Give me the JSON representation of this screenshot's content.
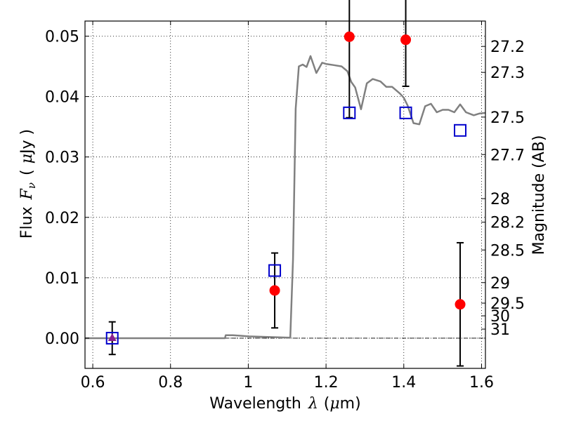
{
  "chart_data": {
    "type": "scatter",
    "xlabel_prefix": "Wavelength",
    "xlabel_symbol": "λ",
    "xlabel_unit_open": "(",
    "xlabel_unit_mu": "μ",
    "xlabel_unit_rest": "m)",
    "ylabel_prefix": "Flux",
    "ylabel_symbol": "F",
    "ylabel_subscript": "ν",
    "ylabel_unit_open": "(",
    "ylabel_unit_mu": "μ",
    "ylabel_unit_rest": "Jy )",
    "y2label": "Magnitude (AB)",
    "xlim": [
      0.58,
      1.61
    ],
    "ylim": [
      -0.005,
      0.0525
    ],
    "grid": true,
    "x_ticks": [
      0.6,
      0.8,
      1.0,
      1.2,
      1.4,
      1.6
    ],
    "x_tick_labels": [
      "0.6",
      "0.8",
      "1",
      "1.2",
      "1.4",
      "1.6"
    ],
    "y_ticks": [
      0.0,
      0.01,
      0.02,
      0.03,
      0.04,
      0.05
    ],
    "y_tick_labels": [
      "0.00",
      "0.01",
      "0.02",
      "0.03",
      "0.04",
      "0.05"
    ],
    "magnitude_ticks": [
      {
        "label": "27.2",
        "flux": 0.0483
      },
      {
        "label": "27.3",
        "flux": 0.044
      },
      {
        "label": "27.5",
        "flux": 0.0366
      },
      {
        "label": "27.7",
        "flux": 0.0304
      },
      {
        "label": "28",
        "flux": 0.0231
      },
      {
        "label": "28.2",
        "flux": 0.0192
      },
      {
        "label": "28.5",
        "flux": 0.0146
      },
      {
        "label": "29",
        "flux": 0.0092
      },
      {
        "label": "29.5",
        "flux": 0.0058
      },
      {
        "label": "30",
        "flux": 0.0037
      },
      {
        "label": "31",
        "flux": 0.0015
      }
    ],
    "series": [
      {
        "kind": "line",
        "color": "#808080",
        "x": [
          0.58,
          0.9,
          0.94,
          0.942,
          0.95,
          0.96,
          0.98,
          1.0,
          1.05,
          1.1,
          1.108,
          1.115,
          1.122,
          1.13,
          1.14,
          1.15,
          1.16,
          1.175,
          1.19,
          1.2,
          1.22,
          1.24,
          1.255,
          1.265,
          1.275,
          1.29,
          1.305,
          1.32,
          1.34,
          1.355,
          1.37,
          1.39,
          1.4,
          1.41,
          1.425,
          1.44,
          1.455,
          1.47,
          1.485,
          1.5,
          1.515,
          1.53,
          1.545,
          1.56,
          1.58,
          1.595,
          1.61
        ],
        "y": [
          0.0,
          0.0,
          0.0,
          0.0005,
          0.0005,
          0.0005,
          0.0004,
          0.0003,
          0.0002,
          0.0001,
          0.0001,
          0.013,
          0.038,
          0.045,
          0.0453,
          0.0449,
          0.0467,
          0.0439,
          0.0456,
          0.0454,
          0.0452,
          0.045,
          0.0442,
          0.0424,
          0.0415,
          0.0379,
          0.0422,
          0.0429,
          0.0425,
          0.0416,
          0.0416,
          0.0405,
          0.0398,
          0.0385,
          0.0356,
          0.0354,
          0.0384,
          0.0388,
          0.0374,
          0.0378,
          0.0378,
          0.0374,
          0.0387,
          0.0374,
          0.0369,
          0.0372,
          0.0373
        ]
      },
      {
        "kind": "points",
        "marker": "circle",
        "color": "#ff0000",
        "x": [
          1.068,
          1.26,
          1.405,
          1.545
        ],
        "y": [
          0.0079,
          0.0499,
          0.0494,
          0.0056
        ],
        "err": [
          0.0062,
          0.0134,
          0.0077,
          0.0102
        ]
      },
      {
        "kind": "points",
        "marker": "square",
        "color": "#0000cc",
        "x": [
          0.65,
          1.068,
          1.26,
          1.405,
          1.545
        ],
        "y": [
          0.0,
          0.0112,
          0.0373,
          0.0373,
          0.0344
        ]
      },
      {
        "kind": "points",
        "marker": "triangle",
        "color": "#8a2090",
        "x": [
          0.65
        ],
        "y": [
          0.0
        ],
        "err": [
          0.0027
        ]
      }
    ]
  }
}
